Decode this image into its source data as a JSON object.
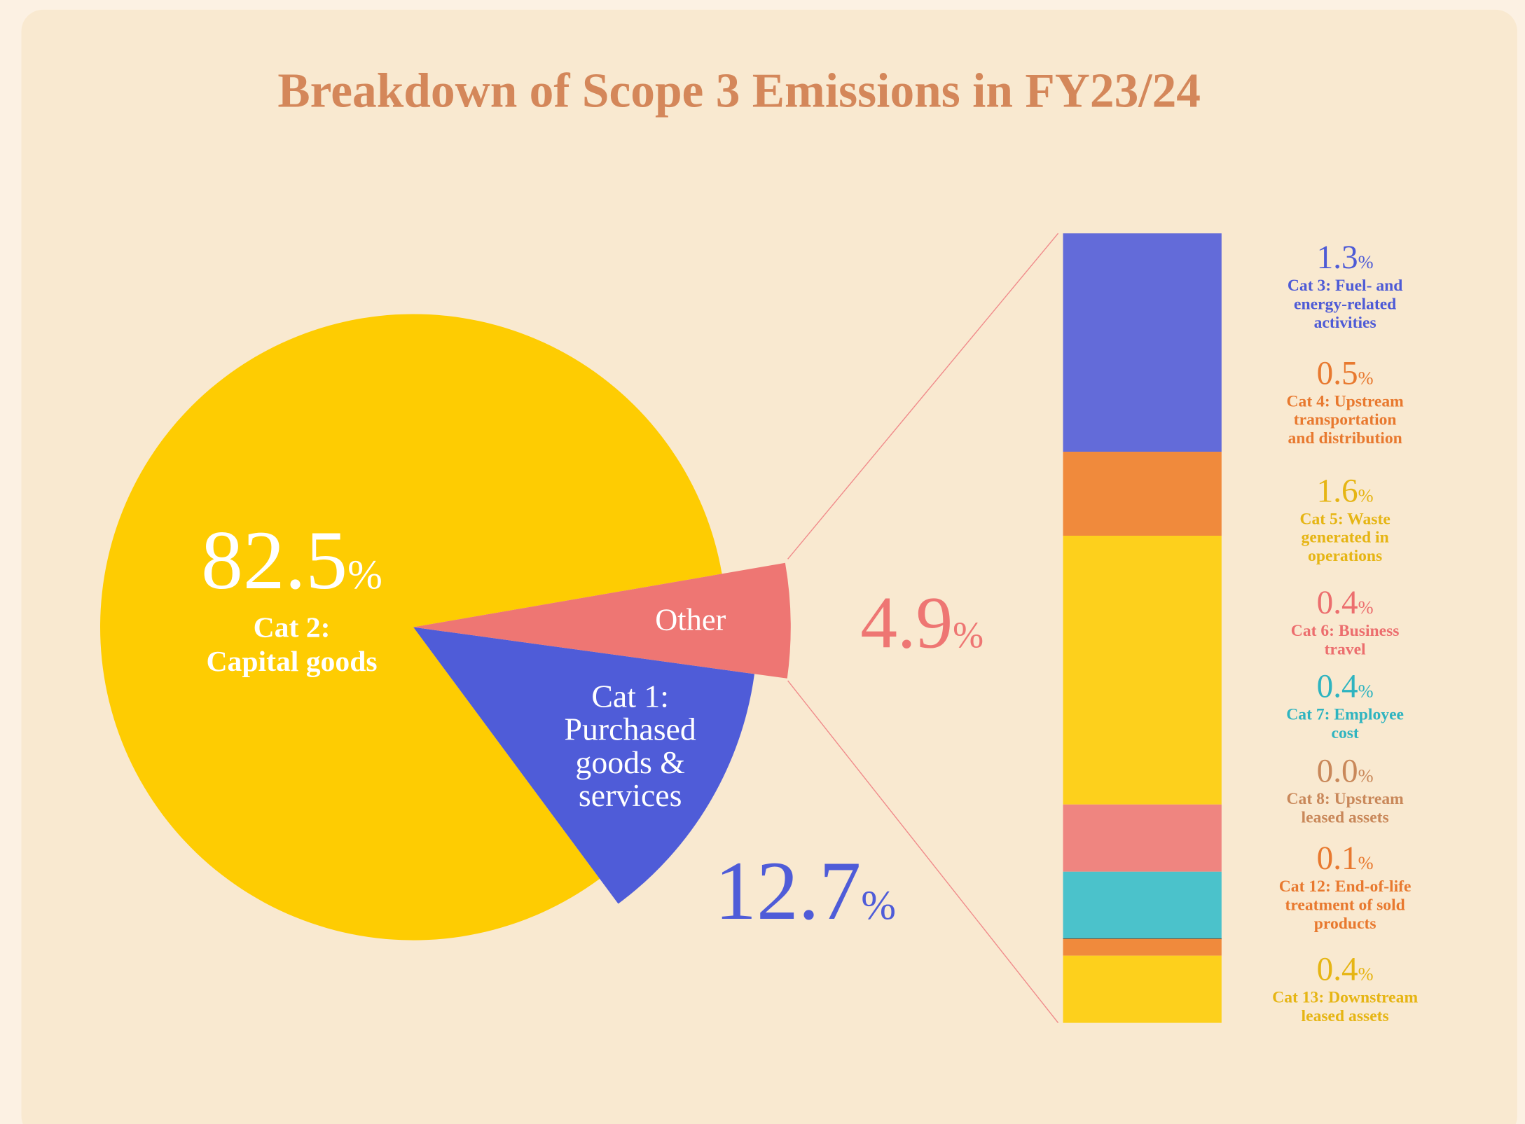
{
  "chart_data": {
    "type": "pie-of-bar",
    "title": "Breakdown of Scope 3 Emissions in FY23/24",
    "unit": "%",
    "pie": {
      "categories": [
        [
          "Cat 2:",
          "Capital goods"
        ],
        [
          "Cat 1:",
          "Purchased",
          "goods &",
          "services"
        ],
        [
          "Other"
        ]
      ],
      "values": [
        82.5,
        12.7,
        4.9
      ],
      "colors": [
        "#fecc02",
        "#4f5cd8",
        "#ee7673"
      ],
      "label_colors": [
        "#ffffff",
        "#4f5cd8",
        "#ee7673"
      ]
    },
    "bar": {
      "categories": [
        [
          "Cat 3: Fuel- and",
          "energy-related",
          "activities"
        ],
        [
          "Cat 4: Upstream",
          "transportation",
          "and distribution"
        ],
        [
          "Cat 5: Waste",
          "generated in",
          "operations"
        ],
        [
          "Cat 6: Business",
          "travel"
        ],
        [
          "Cat 7: Employee",
          "cost"
        ],
        [
          "Cat 8: Upstream",
          "leased assets"
        ],
        [
          "Cat 12: End-of-life",
          "treatment of sold",
          "products"
        ],
        [
          "Cat 13: Downstream",
          "leased assets"
        ]
      ],
      "values": [
        1.3,
        0.5,
        1.6,
        0.4,
        0.4,
        0,
        0.1,
        0.4
      ],
      "value_labels": [
        "1.3",
        "0.5",
        "1.6",
        "0.4",
        "0.4",
        "0.0",
        "0.1",
        "0.4"
      ],
      "colors": [
        "#636bd9",
        "#f08a3c",
        "#fdd01c",
        "#ef8580",
        "#4bc2cb",
        "#3a3a3a",
        "#f08a3c",
        "#fdd01c"
      ],
      "label_colors": [
        "#4e5bd6",
        "#e8792f",
        "#e6b514",
        "#ec6e6e",
        "#2fb4c0",
        "#c9885a",
        "#e8792f",
        "#e6b514"
      ]
    }
  }
}
